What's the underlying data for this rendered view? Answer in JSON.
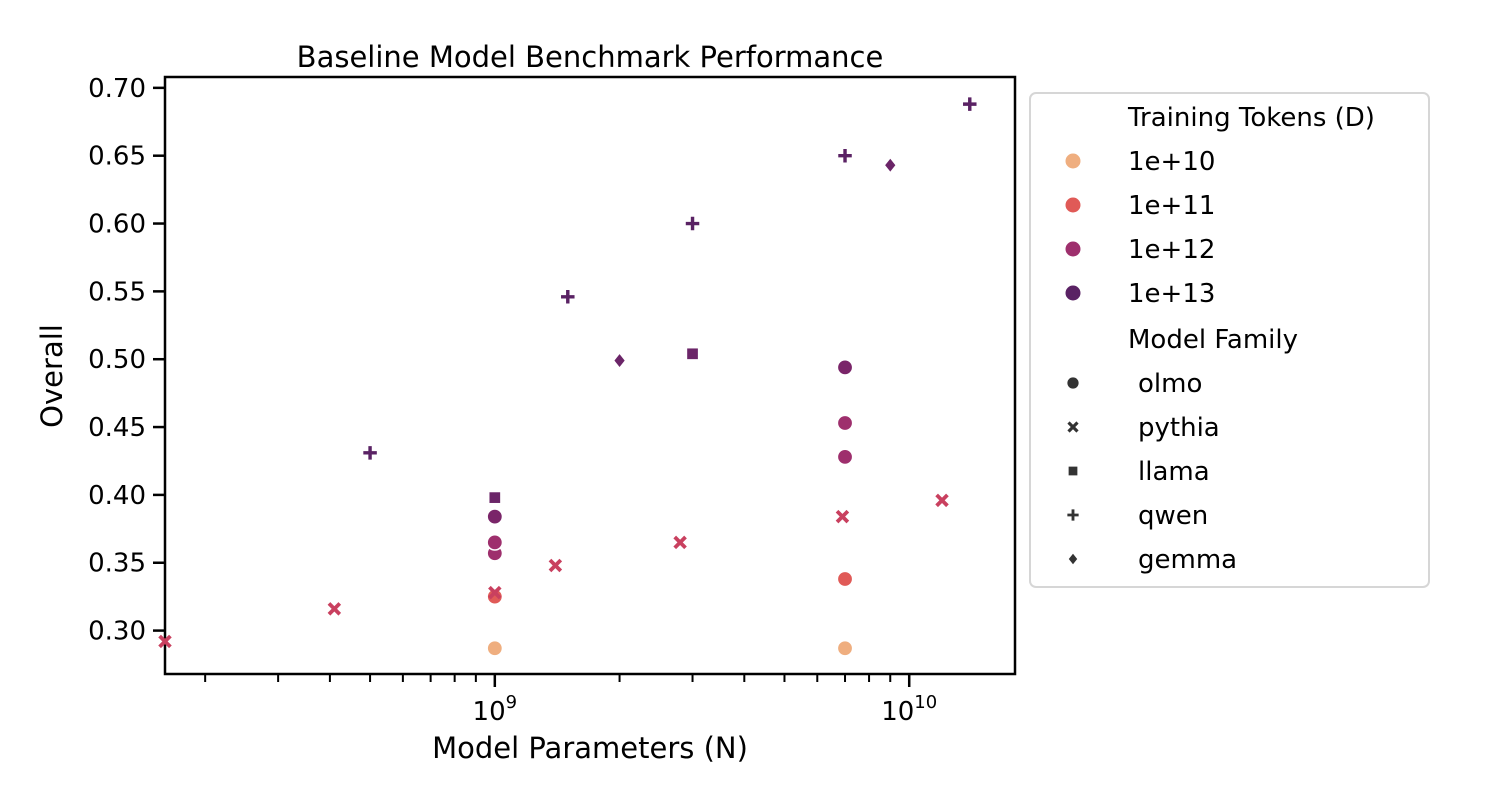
{
  "chart_data": {
    "type": "scatter",
    "title": "Baseline Model Benchmark Performance",
    "xlabel": "Model Parameters (N)",
    "ylabel": "Overall",
    "x_scale": "log",
    "xlim": [
      160000000.0,
      18000000000.0
    ],
    "ylim": [
      0.268,
      0.708
    ],
    "y_ticks": [
      "0.30",
      "0.35",
      "0.40",
      "0.45",
      "0.50",
      "0.55",
      "0.60",
      "0.65",
      "0.70"
    ],
    "x_major_ticks": [
      {
        "value": 1000000000.0,
        "base": "10",
        "exp": "9"
      },
      {
        "value": 10000000000.0,
        "base": "10",
        "exp": "10"
      }
    ],
    "grid": false,
    "legend_placement": "outside-right",
    "legend": {
      "hue_title": "Training Tokens (D)",
      "hue_entries": [
        {
          "label": "1e+10",
          "color": "#efae7f"
        },
        {
          "label": "1e+11",
          "color": "#e05a57"
        },
        {
          "label": "1e+12",
          "color": "#9e2f6d"
        },
        {
          "label": "1e+13",
          "color": "#5a2264"
        }
      ],
      "style_title": "Model Family",
      "style_entries": [
        {
          "label": "olmo",
          "marker": "circle"
        },
        {
          "label": "pythia",
          "marker": "x"
        },
        {
          "label": "llama",
          "marker": "square"
        },
        {
          "label": "qwen",
          "marker": "plus"
        },
        {
          "label": "gemma",
          "marker": "diamond"
        }
      ]
    },
    "points": [
      {
        "family": "olmo",
        "x": 1000000000.0,
        "y": 0.287,
        "color": "#efae7f"
      },
      {
        "family": "olmo",
        "x": 7000000000.0,
        "y": 0.287,
        "color": "#efae7f"
      },
      {
        "family": "olmo",
        "x": 7000000000.0,
        "y": 0.338,
        "color": "#e05a57"
      },
      {
        "family": "olmo",
        "x": 1000000000.0,
        "y": 0.325,
        "color": "#e05a57"
      },
      {
        "family": "olmo",
        "x": 1000000000.0,
        "y": 0.357,
        "color": "#9e2f6d"
      },
      {
        "family": "olmo",
        "x": 1000000000.0,
        "y": 0.365,
        "color": "#9e2f6d"
      },
      {
        "family": "olmo",
        "x": 7000000000.0,
        "y": 0.428,
        "color": "#9e2f6d"
      },
      {
        "family": "olmo",
        "x": 7000000000.0,
        "y": 0.453,
        "color": "#9e2f6d"
      },
      {
        "family": "olmo",
        "x": 1000000000.0,
        "y": 0.384,
        "color": "#7a2569"
      },
      {
        "family": "olmo",
        "x": 7000000000.0,
        "y": 0.494,
        "color": "#7a2569"
      },
      {
        "family": "pythia",
        "x": 160000000.0,
        "y": 0.292,
        "color": "#c9405f"
      },
      {
        "family": "pythia",
        "x": 410000000.0,
        "y": 0.316,
        "color": "#c9405f"
      },
      {
        "family": "pythia",
        "x": 1000000000.0,
        "y": 0.328,
        "color": "#c9405f"
      },
      {
        "family": "pythia",
        "x": 1400000000.0,
        "y": 0.348,
        "color": "#c9405f"
      },
      {
        "family": "pythia",
        "x": 2800000000.0,
        "y": 0.365,
        "color": "#c9405f"
      },
      {
        "family": "pythia",
        "x": 6900000000.0,
        "y": 0.384,
        "color": "#c9405f"
      },
      {
        "family": "pythia",
        "x": 12000000000.0,
        "y": 0.396,
        "color": "#c9405f"
      },
      {
        "family": "llama",
        "x": 1000000000.0,
        "y": 0.398,
        "color": "#6b2568"
      },
      {
        "family": "llama",
        "x": 3000000000.0,
        "y": 0.504,
        "color": "#6b2568"
      },
      {
        "family": "qwen",
        "x": 500000000.0,
        "y": 0.431,
        "color": "#5a2264"
      },
      {
        "family": "qwen",
        "x": 1500000000.0,
        "y": 0.546,
        "color": "#5a2264"
      },
      {
        "family": "qwen",
        "x": 3000000000.0,
        "y": 0.6,
        "color": "#5a2264"
      },
      {
        "family": "qwen",
        "x": 7000000000.0,
        "y": 0.65,
        "color": "#5a2264"
      },
      {
        "family": "qwen",
        "x": 14000000000.0,
        "y": 0.688,
        "color": "#5a2264"
      },
      {
        "family": "gemma",
        "x": 2000000000.0,
        "y": 0.499,
        "color": "#6b2568"
      },
      {
        "family": "gemma",
        "x": 9000000000.0,
        "y": 0.643,
        "color": "#6b2568"
      }
    ]
  }
}
